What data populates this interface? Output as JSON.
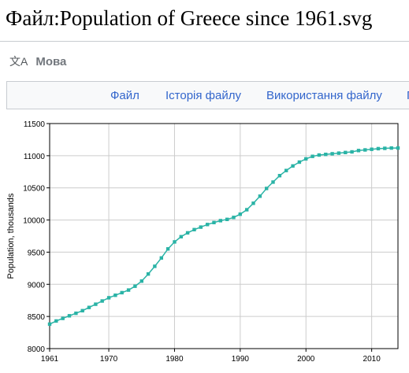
{
  "page": {
    "title": "Файл:Population of Greece since 1961.svg"
  },
  "language": {
    "label": "Мова",
    "icon": "translate-icon"
  },
  "tabs": [
    {
      "label": "Файл"
    },
    {
      "label": "Історія файлу"
    },
    {
      "label": "Використання файлу"
    },
    {
      "label": "Г"
    }
  ],
  "colors": {
    "series": "#2ab3a6",
    "link": "#3366cc"
  },
  "chart_data": {
    "type": "line",
    "title": "",
    "xlabel": "",
    "ylabel": "Population, thousands",
    "xlim": [
      1961,
      2014
    ],
    "ylim": [
      8000,
      11500
    ],
    "grid": true,
    "x_ticks": [
      "1961",
      "1970",
      "1980",
      "1990",
      "2000",
      "2010"
    ],
    "y_ticks": [
      "8000",
      "8500",
      "9000",
      "9500",
      "10000",
      "10500",
      "11000",
      "11500"
    ],
    "series": [
      {
        "name": "",
        "x": [
          1961,
          1962,
          1963,
          1964,
          1965,
          1966,
          1967,
          1968,
          1969,
          1970,
          1971,
          1972,
          1973,
          1974,
          1975,
          1976,
          1977,
          1978,
          1979,
          1980,
          1981,
          1982,
          1983,
          1984,
          1985,
          1986,
          1987,
          1988,
          1989,
          1990,
          1991,
          1992,
          1993,
          1994,
          1995,
          1996,
          1997,
          1998,
          1999,
          2000,
          2001,
          2002,
          2003,
          2004,
          2005,
          2006,
          2007,
          2008,
          2009,
          2010,
          2011,
          2012,
          2013,
          2014
        ],
        "y": [
          8380,
          8430,
          8470,
          8510,
          8550,
          8590,
          8640,
          8690,
          8740,
          8790,
          8830,
          8870,
          8910,
          8970,
          9050,
          9160,
          9280,
          9410,
          9550,
          9660,
          9740,
          9800,
          9850,
          9890,
          9930,
          9960,
          9990,
          10010,
          10040,
          10090,
          10160,
          10260,
          10370,
          10490,
          10590,
          10690,
          10770,
          10840,
          10900,
          10950,
          10990,
          11010,
          11020,
          11030,
          11040,
          11050,
          11060,
          11080,
          11090,
          11100,
          11110,
          11115,
          11120,
          11120
        ]
      }
    ]
  }
}
